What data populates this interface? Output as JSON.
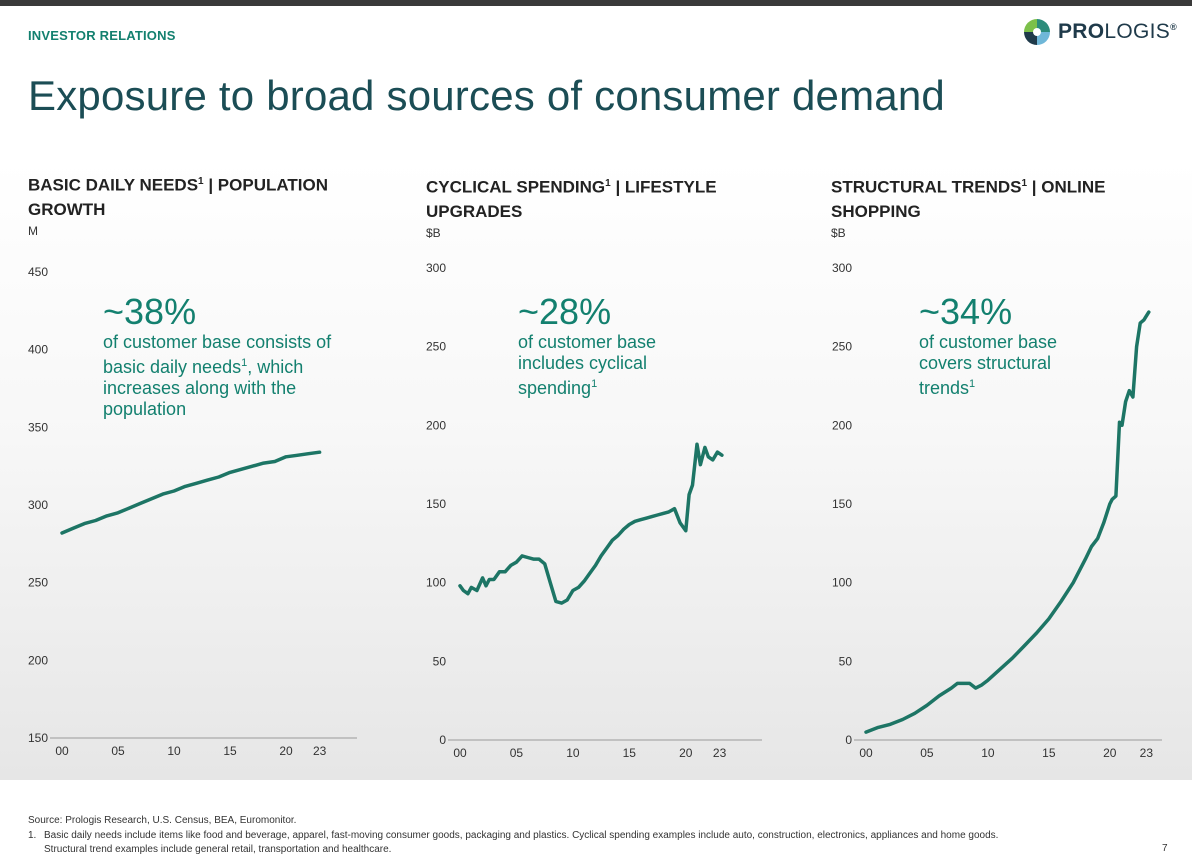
{
  "header": {
    "section_label": "INVESTOR RELATIONS",
    "logo": {
      "bold": "PRO",
      "light": "LOGIS",
      "reg": "®"
    },
    "title": "Exposure to broad sources of consumer demand"
  },
  "panels": [
    {
      "title_a": "BASIC DAILY NEEDS",
      "sup": "1",
      "title_b": " | POPULATION GROWTH",
      "unit": "M",
      "callout": {
        "pct": "~38%",
        "desc_a": "of customer base consists of basic daily needs",
        "desc_sup": "1",
        "desc_b": ", which increases along with the population"
      }
    },
    {
      "title_a": "CYCLICAL SPENDING",
      "sup": "1",
      "title_b": " | LIFESTYLE UPGRADES",
      "unit": "$B",
      "callout": {
        "pct": "~28%",
        "desc_a": "of customer base includes cyclical spending",
        "desc_sup": "1",
        "desc_b": ""
      }
    },
    {
      "title_a": "STRUCTURAL TRENDS",
      "sup": "1",
      "title_b": " | ONLINE SHOPPING",
      "unit": "$B",
      "callout": {
        "pct": "~34%",
        "desc_a": "of customer base covers structural trends",
        "desc_sup": "1",
        "desc_b": ""
      }
    }
  ],
  "chart_data": [
    {
      "type": "line",
      "title": "BASIC DAILY NEEDS | POPULATION GROWTH",
      "ylabel": "M",
      "ylim": [
        150,
        450
      ],
      "yticks": [
        150,
        200,
        250,
        300,
        350,
        400,
        450
      ],
      "xlim": [
        2000,
        2023.3
      ],
      "xticks": [
        {
          "value": 2000,
          "label": "00"
        },
        {
          "value": 2005,
          "label": "05"
        },
        {
          "value": 2010,
          "label": "10"
        },
        {
          "value": 2015,
          "label": "15"
        },
        {
          "value": 2020,
          "label": "20"
        },
        {
          "value": 2023,
          "label": "23"
        }
      ],
      "color": "#1d7565",
      "x": [
        2000,
        2001,
        2002,
        2003,
        2004,
        2005,
        2006,
        2007,
        2008,
        2009,
        2010,
        2011,
        2012,
        2013,
        2014,
        2015,
        2016,
        2017,
        2018,
        2019,
        2020,
        2021,
        2022,
        2023
      ],
      "y": [
        282,
        285,
        288,
        290,
        293,
        295,
        298,
        301,
        304,
        307,
        309,
        312,
        314,
        316,
        318,
        321,
        323,
        325,
        327,
        328,
        331,
        332,
        333,
        334
      ]
    },
    {
      "type": "line",
      "title": "CYCLICAL SPENDING | LIFESTYLE UPGRADES",
      "ylabel": "$B",
      "ylim": [
        0,
        300
      ],
      "yticks": [
        0,
        50,
        100,
        150,
        200,
        250,
        300
      ],
      "xlim": [
        2000,
        2023.3
      ],
      "xticks": [
        {
          "value": 2000,
          "label": "00"
        },
        {
          "value": 2005,
          "label": "05"
        },
        {
          "value": 2010,
          "label": "10"
        },
        {
          "value": 2015,
          "label": "15"
        },
        {
          "value": 2020,
          "label": "20"
        },
        {
          "value": 2023,
          "label": "23"
        }
      ],
      "color": "#1d7565",
      "x": [
        2000,
        2000.3,
        2000.7,
        2001,
        2001.5,
        2002,
        2002.3,
        2002.6,
        2003,
        2003.5,
        2004,
        2004.5,
        2005,
        2005.5,
        2006,
        2006.5,
        2007,
        2007.5,
        2008,
        2008.5,
        2009,
        2009.5,
        2010,
        2010.5,
        2011,
        2011.5,
        2012,
        2012.5,
        2013,
        2013.5,
        2014,
        2014.5,
        2015,
        2015.5,
        2016,
        2016.5,
        2017,
        2017.5,
        2018,
        2018.5,
        2019,
        2019.5,
        2020,
        2020.3,
        2020.6,
        2021,
        2021.3,
        2021.7,
        2022,
        2022.4,
        2022.8,
        2023.2
      ],
      "y": [
        98,
        95,
        93,
        97,
        95,
        103,
        98,
        102,
        102,
        107,
        107,
        111,
        113,
        117,
        116,
        115,
        115,
        112,
        100,
        88,
        87,
        89,
        95,
        97,
        101,
        106,
        111,
        117,
        122,
        127,
        130,
        134,
        137,
        139,
        140,
        141,
        142,
        143,
        144,
        145,
        147,
        138,
        133,
        156,
        162,
        188,
        175,
        186,
        180,
        178,
        183,
        181
      ]
    },
    {
      "type": "line",
      "title": "STRUCTURAL TRENDS | ONLINE SHOPPING",
      "ylabel": "$B",
      "ylim": [
        0,
        300
      ],
      "yticks": [
        0,
        50,
        100,
        150,
        200,
        250,
        300
      ],
      "xlim": [
        2000,
        2023.3
      ],
      "xticks": [
        {
          "value": 2000,
          "label": "00"
        },
        {
          "value": 2005,
          "label": "05"
        },
        {
          "value": 2010,
          "label": "10"
        },
        {
          "value": 2015,
          "label": "15"
        },
        {
          "value": 2020,
          "label": "20"
        },
        {
          "value": 2023,
          "label": "23"
        }
      ],
      "color": "#1d7565",
      "x": [
        2000,
        2001,
        2002,
        2003,
        2004,
        2005,
        2006,
        2007,
        2007.5,
        2008,
        2008.5,
        2009,
        2009.5,
        2010,
        2011,
        2012,
        2013,
        2014,
        2015,
        2016,
        2017,
        2018,
        2018.5,
        2019,
        2019.5,
        2020,
        2020.2,
        2020.5,
        2020.8,
        2021,
        2021.3,
        2021.6,
        2021.9,
        2022.2,
        2022.5,
        2022.8,
        2023.2
      ],
      "y": [
        5,
        8,
        10,
        13,
        17,
        22,
        28,
        33,
        36,
        36,
        36,
        33,
        35,
        38,
        45,
        52,
        60,
        68,
        77,
        88,
        100,
        115,
        123,
        128,
        138,
        150,
        153,
        155,
        202,
        200,
        215,
        222,
        218,
        250,
        265,
        267,
        272
      ]
    }
  ],
  "footer": {
    "source": "Source: Prologis Research, U.S. Census, BEA, Euromonitor.",
    "footnote_num": "1.",
    "footnote_line1": "Basic daily needs include items like food and beverage, apparel, fast-moving consumer goods, packaging and plastics. Cyclical spending examples include auto, construction, electronics, appliances and home goods.",
    "footnote_line2": "Structural trend examples include general retail, transportation and healthcare.",
    "page_number": "7"
  }
}
